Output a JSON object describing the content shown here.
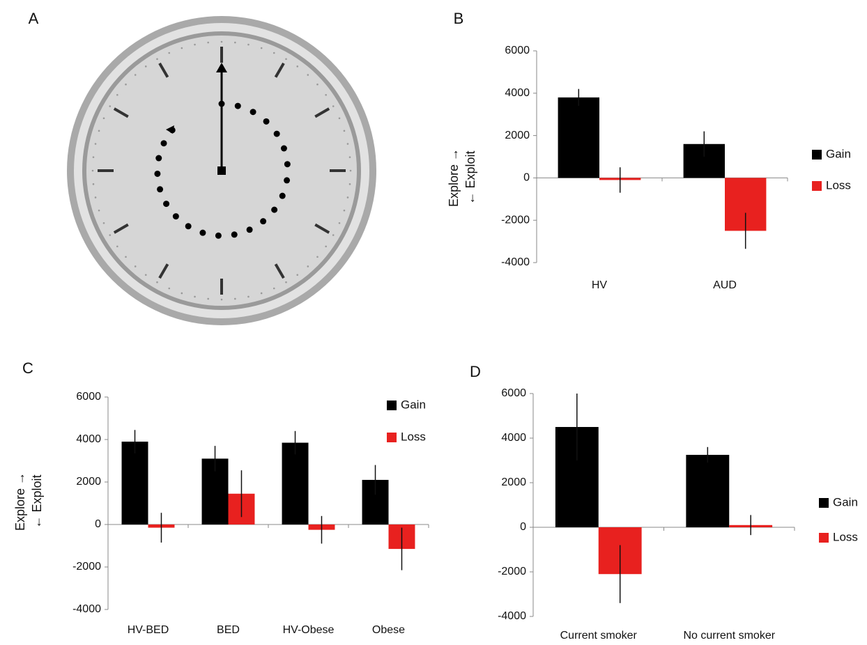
{
  "panel_a": {
    "label": "A"
  },
  "chart_data": [
    {
      "type": "bar",
      "label": "B",
      "y_label": [
        "Explore →",
        "← Exploit"
      ],
      "categories": [
        "HV",
        "AUD"
      ],
      "series": [
        {
          "name": "Gain",
          "color": "#000000",
          "values": [
            3800,
            1600
          ],
          "errors": [
            400,
            600
          ]
        },
        {
          "name": "Loss",
          "color": "#e8211f",
          "values": [
            -100,
            -2500
          ],
          "errors": [
            600,
            850
          ]
        }
      ],
      "ylim": [
        -4000,
        6000
      ],
      "yticks": [
        -4000,
        -2000,
        0,
        2000,
        4000,
        6000
      ]
    },
    {
      "type": "bar",
      "label": "C",
      "y_label": [
        "Explore →",
        "← Exploit"
      ],
      "categories": [
        "HV-BED",
        "BED",
        "HV-Obese",
        "Obese"
      ],
      "series": [
        {
          "name": "Gain",
          "color": "#000000",
          "values": [
            3900,
            3100,
            3850,
            2100
          ],
          "errors": [
            550,
            600,
            550,
            700
          ]
        },
        {
          "name": "Loss",
          "color": "#e8211f",
          "values": [
            -150,
            1450,
            -250,
            -1150
          ],
          "errors": [
            700,
            1100,
            650,
            1000
          ]
        }
      ],
      "ylim": [
        -4000,
        6000
      ],
      "yticks": [
        -4000,
        -2000,
        0,
        2000,
        4000,
        6000
      ]
    },
    {
      "type": "bar",
      "label": "D",
      "categories": [
        "Current smoker",
        "No current smoker"
      ],
      "series": [
        {
          "name": "Gain",
          "color": "#000000",
          "values": [
            4500,
            3250
          ],
          "errors": [
            1500,
            350
          ]
        },
        {
          "name": "Loss",
          "color": "#e8211f",
          "values": [
            -2100,
            100
          ],
          "errors": [
            1300,
            450
          ]
        }
      ],
      "ylim": [
        -4000,
        6000
      ],
      "yticks": [
        -4000,
        -2000,
        0,
        2000,
        4000,
        6000
      ]
    }
  ]
}
